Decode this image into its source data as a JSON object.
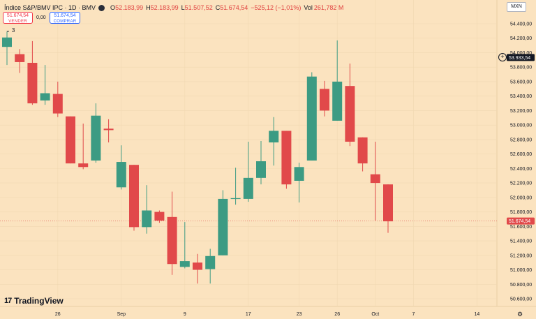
{
  "header": {
    "symbol": "Índice S&P/BMV IPC · 1D · BMV",
    "open_label": "O",
    "open": "52.183,99",
    "high_label": "H",
    "high": "52.183,99",
    "low_label": "L",
    "low": "51.507,52",
    "close_label": "C",
    "close": "51.674,54",
    "change": "−525,12 (−1,01%)",
    "vol_label": "Vol",
    "vol": "261,782 M"
  },
  "trade": {
    "sell_price": "51.674,54",
    "sell_label": "VENDER",
    "spread": "0,00",
    "buy_price": "51.674,54",
    "buy_label": "COMPRAR"
  },
  "indicator_toggle": "⌄ 3",
  "currency": "MXN",
  "crosshair_price": "53.933,54",
  "last_price": "51.674,54",
  "brand": "TradingView",
  "colors": {
    "up": "#3c9b83",
    "down": "#e1494a",
    "background": "#fbe3bf",
    "last_price_tag": "#e1494a"
  },
  "chart_data": {
    "type": "candlestick",
    "y_ticks": [
      "54.400,00",
      "54.200,00",
      "54.000,00",
      "53.800,00",
      "53.600,00",
      "53.400,00",
      "53.200,00",
      "53.000,00",
      "52.800,00",
      "52.600,00",
      "52.400,00",
      "52.200,00",
      "52.000,00",
      "51.800,00",
      "51.600,00",
      "51.400,00",
      "51.200,00",
      "51.000,00",
      "50.800,00",
      "50.600,00"
    ],
    "ylim": [
      50530,
      54520
    ],
    "x_ticks": [
      {
        "label": "26",
        "bar": 4
      },
      {
        "label": "Sep",
        "bar": 9
      },
      {
        "label": "9",
        "bar": 14
      },
      {
        "label": "17",
        "bar": 19
      },
      {
        "label": "23",
        "bar": 23
      },
      {
        "label": "26",
        "bar": 26
      },
      {
        "label": "Oct",
        "bar": 29
      },
      {
        "label": "7",
        "bar": 32
      },
      {
        "label": "14",
        "bar": 37
      }
    ],
    "candles": [
      {
        "o": 54080,
        "h": 54290,
        "l": 53830,
        "c": 54210
      },
      {
        "o": 53980,
        "h": 54050,
        "l": 53720,
        "c": 53870
      },
      {
        "o": 53860,
        "h": 54160,
        "l": 53280,
        "c": 53300
      },
      {
        "o": 53340,
        "h": 53830,
        "l": 53280,
        "c": 53440
      },
      {
        "o": 53430,
        "h": 53600,
        "l": 53110,
        "c": 53160
      },
      {
        "o": 53120,
        "h": 53120,
        "l": 52470,
        "c": 52470
      },
      {
        "o": 52470,
        "h": 53020,
        "l": 52390,
        "c": 52420
      },
      {
        "o": 52510,
        "h": 53300,
        "l": 52480,
        "c": 53130
      },
      {
        "o": 52950,
        "h": 53080,
        "l": 52760,
        "c": 52930
      },
      {
        "o": 52140,
        "h": 52720,
        "l": 52110,
        "c": 52490
      },
      {
        "o": 52450,
        "h": 52450,
        "l": 51540,
        "c": 51590
      },
      {
        "o": 51590,
        "h": 52170,
        "l": 51500,
        "c": 51820
      },
      {
        "o": 51800,
        "h": 51820,
        "l": 51650,
        "c": 51680
      },
      {
        "o": 51730,
        "h": 52080,
        "l": 50930,
        "c": 51080
      },
      {
        "o": 51040,
        "h": 51660,
        "l": 51020,
        "c": 51120
      },
      {
        "o": 51100,
        "h": 51220,
        "l": 50810,
        "c": 51000
      },
      {
        "o": 51010,
        "h": 51290,
        "l": 50810,
        "c": 51190
      },
      {
        "o": 51200,
        "h": 52100,
        "l": 51200,
        "c": 51980
      },
      {
        "o": 51980,
        "h": 52410,
        "l": 51900,
        "c": 51990
      },
      {
        "o": 51980,
        "h": 52770,
        "l": 51940,
        "c": 52270
      },
      {
        "o": 52270,
        "h": 52780,
        "l": 52180,
        "c": 52500
      },
      {
        "o": 52760,
        "h": 53110,
        "l": 52440,
        "c": 52920
      },
      {
        "o": 52920,
        "h": 52920,
        "l": 52120,
        "c": 52180
      },
      {
        "o": 52230,
        "h": 52480,
        "l": 51930,
        "c": 52420
      },
      {
        "o": 52510,
        "h": 53730,
        "l": 52510,
        "c": 53670
      },
      {
        "o": 53500,
        "h": 53610,
        "l": 53120,
        "c": 53200
      },
      {
        "o": 53060,
        "h": 54170,
        "l": 53060,
        "c": 53600
      },
      {
        "o": 53540,
        "h": 53850,
        "l": 52710,
        "c": 52770
      },
      {
        "o": 52830,
        "h": 52830,
        "l": 52360,
        "c": 52470
      },
      {
        "o": 52320,
        "h": 52770,
        "l": 51680,
        "c": 52200
      },
      {
        "o": 52180,
        "h": 52180,
        "l": 51510,
        "c": 51670
      }
    ]
  }
}
